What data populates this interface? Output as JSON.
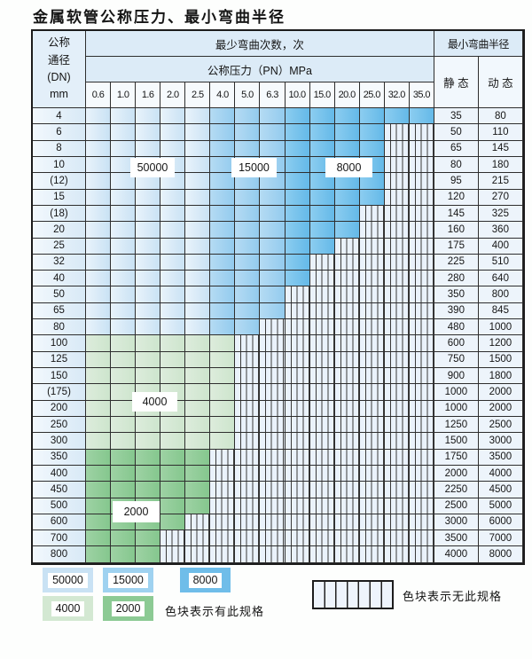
{
  "title": "金属软管公称压力、最小弯曲半径",
  "table": {
    "header": {
      "dn_label": "公称\n通径\n(DN)\nmm",
      "cycles_label": "最少弯曲次数，次",
      "pressure_label": "公称压力（PN）MPa",
      "pressure_columns": [
        "0.6",
        "1.0",
        "1.6",
        "2.0",
        "2.5",
        "4.0",
        "5.0",
        "6.3",
        "10.0",
        "15.0",
        "20.0",
        "25.0",
        "32.0",
        "35.0"
      ],
      "radius_label": "最小弯曲半径",
      "static_label": "静 态",
      "dynamic_label": "动 态"
    },
    "shade_meaning": {
      "b1": "50000",
      "b2": "15000",
      "b3": "8000",
      "g4": "4000",
      "g2": "2000",
      "hatch": "无此规格"
    },
    "blue_shade_by_column": {
      "b1_columns": "0.6-2.5",
      "b2_columns": "4.0-6.3",
      "b3_columns": "10.0-35.0"
    },
    "rows": [
      {
        "dn": "4",
        "shade": "blue",
        "last_col": 13,
        "static": "35",
        "dynamic": "80"
      },
      {
        "dn": "6",
        "shade": "blue",
        "last_col": 11,
        "static": "50",
        "dynamic": "110"
      },
      {
        "dn": "8",
        "shade": "blue",
        "last_col": 11,
        "static": "65",
        "dynamic": "145"
      },
      {
        "dn": "10",
        "shade": "blue",
        "last_col": 11,
        "static": "80",
        "dynamic": "180"
      },
      {
        "dn": "(12)",
        "shade": "blue",
        "last_col": 11,
        "static": "95",
        "dynamic": "215"
      },
      {
        "dn": "15",
        "shade": "blue",
        "last_col": 11,
        "static": "120",
        "dynamic": "270"
      },
      {
        "dn": "(18)",
        "shade": "blue",
        "last_col": 10,
        "static": "145",
        "dynamic": "325"
      },
      {
        "dn": "20",
        "shade": "blue",
        "last_col": 10,
        "static": "160",
        "dynamic": "360"
      },
      {
        "dn": "25",
        "shade": "blue",
        "last_col": 9,
        "static": "175",
        "dynamic": "400"
      },
      {
        "dn": "32",
        "shade": "blue",
        "last_col": 8,
        "static": "225",
        "dynamic": "510"
      },
      {
        "dn": "40",
        "shade": "blue",
        "last_col": 8,
        "static": "280",
        "dynamic": "640"
      },
      {
        "dn": "50",
        "shade": "blue",
        "last_col": 7,
        "static": "350",
        "dynamic": "800"
      },
      {
        "dn": "65",
        "shade": "blue",
        "last_col": 7,
        "static": "390",
        "dynamic": "845"
      },
      {
        "dn": "80",
        "shade": "blue",
        "last_col": 6,
        "static": "480",
        "dynamic": "1000"
      },
      {
        "dn": "100",
        "shade": "g4",
        "last_col": 5,
        "static": "600",
        "dynamic": "1200"
      },
      {
        "dn": "125",
        "shade": "g4",
        "last_col": 5,
        "static": "750",
        "dynamic": "1500"
      },
      {
        "dn": "150",
        "shade": "g4",
        "last_col": 5,
        "static": "900",
        "dynamic": "1800"
      },
      {
        "dn": "(175)",
        "shade": "g4",
        "last_col": 5,
        "static": "1000",
        "dynamic": "2000"
      },
      {
        "dn": "200",
        "shade": "g4",
        "last_col": 5,
        "static": "1000",
        "dynamic": "2000"
      },
      {
        "dn": "250",
        "shade": "g4",
        "last_col": 5,
        "static": "1250",
        "dynamic": "2500"
      },
      {
        "dn": "300",
        "shade": "g4",
        "last_col": 5,
        "static": "1500",
        "dynamic": "3000"
      },
      {
        "dn": "350",
        "shade": "g2",
        "last_col": 4,
        "static": "1750",
        "dynamic": "3500"
      },
      {
        "dn": "400",
        "shade": "g2",
        "last_col": 4,
        "static": "2000",
        "dynamic": "4000"
      },
      {
        "dn": "450",
        "shade": "g2",
        "last_col": 4,
        "static": "2250",
        "dynamic": "4500"
      },
      {
        "dn": "500",
        "shade": "g2",
        "last_col": 4,
        "static": "2500",
        "dynamic": "5000"
      },
      {
        "dn": "600",
        "shade": "g2",
        "last_col": 3,
        "static": "3000",
        "dynamic": "6000"
      },
      {
        "dn": "700",
        "shade": "g2",
        "last_col": 2,
        "static": "3500",
        "dynamic": "7000"
      },
      {
        "dn": "800",
        "shade": "g2",
        "last_col": 2,
        "static": "4000",
        "dynamic": "8000"
      }
    ]
  },
  "cycle_labels": [
    "50000",
    "15000",
    "8000",
    "4000",
    "2000"
  ],
  "legend": {
    "swatches": [
      {
        "value": "50000",
        "color": "#c9e2f4"
      },
      {
        "value": "15000",
        "color": "#9fd2f0"
      },
      {
        "value": "8000",
        "color": "#6fbde9"
      },
      {
        "value": "4000",
        "color": "#d3e8d2"
      },
      {
        "value": "2000",
        "color": "#8cca94"
      }
    ],
    "has_spec_note": "色块表示有此规格",
    "no_spec_note": "色块表示无此规格",
    "hatch_meaning_color": "#eef4fc"
  }
}
